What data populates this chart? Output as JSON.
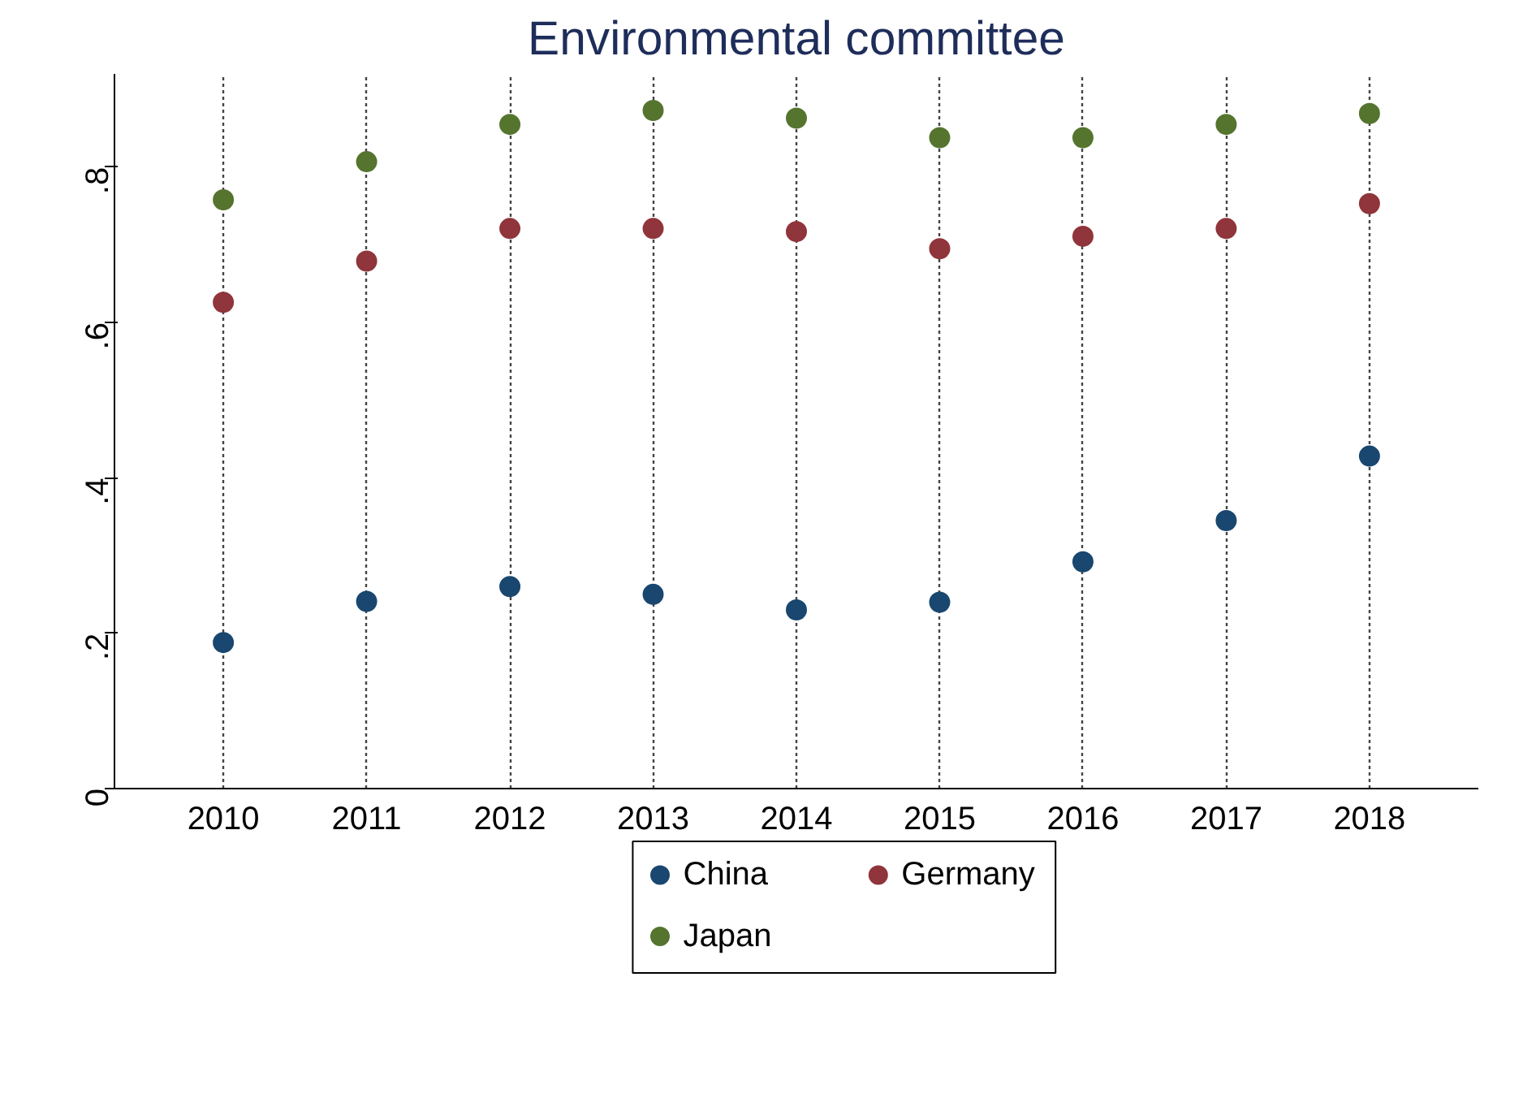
{
  "chart_data": {
    "type": "scatter",
    "title": "Environmental committee",
    "x": [
      2010,
      2011,
      2012,
      2013,
      2014,
      2015,
      2016,
      2017,
      2018
    ],
    "xlim": [
      2009.24,
      2018.76
    ],
    "xticks": [
      2010,
      2011,
      2012,
      2013,
      2014,
      2015,
      2016,
      2017,
      2018
    ],
    "ylim": [
      0,
      0.92
    ],
    "yticks": [
      {
        "value": 0,
        "label": "0"
      },
      {
        "value": 0.2,
        "label": ".2"
      },
      {
        "value": 0.4,
        "label": ".4"
      },
      {
        "value": 0.6,
        "label": ".6"
      },
      {
        "value": 0.8,
        "label": ".8"
      }
    ],
    "grid": "x",
    "legend": "bottom",
    "marker": "circle",
    "series": [
      {
        "name": "China",
        "color": "#1a476f",
        "values": [
          0.188,
          0.241,
          0.26,
          0.25,
          0.23,
          0.24,
          0.292,
          0.345,
          0.428
        ]
      },
      {
        "name": "Germany",
        "color": "#90353b",
        "values": [
          0.626,
          0.679,
          0.721,
          0.721,
          0.717,
          0.695,
          0.711,
          0.721,
          0.753
        ]
      },
      {
        "name": "Japan",
        "color": "#55752f",
        "values": [
          0.758,
          0.807,
          0.855,
          0.873,
          0.863,
          0.838,
          0.838,
          0.855,
          0.869
        ]
      }
    ]
  }
}
